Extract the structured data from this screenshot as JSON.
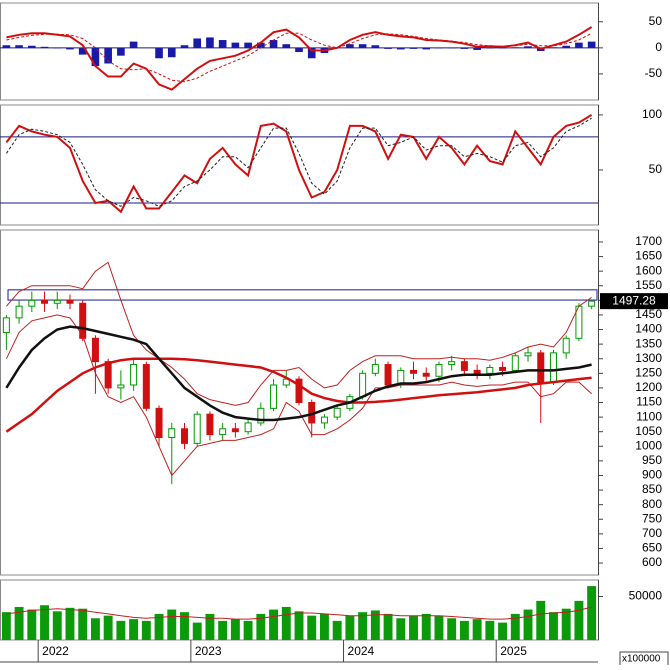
{
  "chart_data": [
    {
      "type": "line",
      "ylim": [
        -100,
        86
      ],
      "yticks": [
        -50,
        0,
        50
      ],
      "reference_lines": [
        0
      ],
      "series": [
        {
          "kind": "bar",
          "color": "#1a1aa8",
          "values": [
            5,
            5,
            4,
            2,
            -1,
            -3,
            -13,
            -35,
            -30,
            -15,
            12,
            0,
            -20,
            -18,
            5,
            18,
            20,
            15,
            10,
            10,
            10,
            15,
            7,
            -8,
            -20,
            -10,
            0,
            7,
            7,
            5,
            -2,
            -3,
            -2,
            -3,
            -1,
            -1,
            -2,
            -4,
            -1,
            -1,
            1,
            3,
            -6,
            1,
            4,
            10,
            12
          ]
        },
        {
          "kind": "line",
          "color": "#d01010",
          "values": [
            20,
            25,
            28,
            28,
            25,
            22,
            5,
            -35,
            -55,
            -55,
            -30,
            -40,
            -70,
            -80,
            -60,
            -40,
            -25,
            -20,
            -15,
            -5,
            10,
            30,
            35,
            20,
            -5,
            -5,
            0,
            15,
            25,
            30,
            25,
            22,
            20,
            15,
            14,
            12,
            8,
            2,
            3,
            2,
            5,
            10,
            -2,
            5,
            12,
            25,
            40
          ]
        },
        {
          "kind": "dashed",
          "color": "#d01010",
          "values": [
            15,
            20,
            24,
            26,
            26,
            25,
            18,
            0,
            -25,
            -40,
            -42,
            -40,
            -50,
            -62,
            -65,
            -58,
            -45,
            -35,
            -25,
            -15,
            0,
            15,
            28,
            28,
            15,
            5,
            0,
            8,
            18,
            25,
            27,
            25,
            22,
            18,
            15,
            13,
            10,
            6,
            4,
            3,
            4,
            7,
            4,
            4,
            8,
            15,
            28
          ]
        }
      ]
    },
    {
      "type": "line",
      "ylim": [
        0,
        109
      ],
      "yticks": [
        50,
        100
      ],
      "reference_lines": [
        80,
        20
      ],
      "series": [
        {
          "kind": "line",
          "color": "#d01010",
          "values": [
            75,
            90,
            85,
            82,
            80,
            70,
            40,
            20,
            22,
            12,
            35,
            15,
            15,
            30,
            45,
            38,
            60,
            70,
            55,
            45,
            90,
            92,
            85,
            50,
            25,
            30,
            50,
            90,
            90,
            85,
            60,
            82,
            80,
            60,
            80,
            70,
            55,
            72,
            58,
            55,
            85,
            70,
            55,
            80,
            90,
            93,
            100
          ]
        },
        {
          "kind": "dashed",
          "color": "#202020",
          "values": [
            65,
            82,
            87,
            85,
            82,
            75,
            55,
            32,
            22,
            17,
            25,
            22,
            17,
            22,
            35,
            40,
            50,
            62,
            62,
            52,
            70,
            88,
            88,
            65,
            38,
            28,
            40,
            70,
            88,
            88,
            72,
            75,
            80,
            68,
            72,
            72,
            62,
            65,
            62,
            57,
            72,
            75,
            62,
            70,
            85,
            90,
            97
          ]
        }
      ]
    },
    {
      "type": "candlestick",
      "ylim": [
        559,
        1741
      ],
      "yticks": [
        600,
        650,
        700,
        750,
        800,
        850,
        900,
        950,
        1000,
        1050,
        1100,
        1150,
        1200,
        1250,
        1300,
        1350,
        1400,
        1450,
        1500,
        1550,
        1600,
        1650,
        1700
      ],
      "up_color": "#009a00",
      "down_color": "#d01010",
      "zone": [
        1501,
        1536
      ],
      "last_value": 1497.28,
      "open": [
        1390,
        1440,
        1480,
        1500,
        1490,
        1500,
        1490,
        1370,
        1290,
        1200,
        1210,
        1280,
        1130,
        1030,
        1060,
        1010,
        1110,
        1040,
        1060,
        1050,
        1080,
        1130,
        1210,
        1230,
        1150,
        1080,
        1100,
        1130,
        1170,
        1250,
        1280,
        1210,
        1260,
        1250,
        1240,
        1280,
        1290,
        1260,
        1250,
        1270,
        1260,
        1310,
        1320,
        1220,
        1320,
        1370,
        1480
      ],
      "high": [
        1450,
        1500,
        1530,
        1530,
        1530,
        1520,
        1500,
        1380,
        1300,
        1260,
        1300,
        1290,
        1140,
        1080,
        1080,
        1120,
        1120,
        1080,
        1080,
        1090,
        1150,
        1230,
        1260,
        1240,
        1160,
        1110,
        1140,
        1180,
        1260,
        1300,
        1290,
        1270,
        1290,
        1270,
        1290,
        1310,
        1300,
        1280,
        1280,
        1290,
        1320,
        1340,
        1330,
        1330,
        1380,
        1490,
        1500
      ],
      "low": [
        1330,
        1420,
        1460,
        1460,
        1470,
        1470,
        1360,
        1180,
        1180,
        1160,
        1190,
        1120,
        1000,
        870,
        990,
        1000,
        1020,
        1020,
        1030,
        1040,
        1070,
        1120,
        1200,
        1140,
        1030,
        1060,
        1090,
        1120,
        1160,
        1240,
        1200,
        1200,
        1230,
        1220,
        1220,
        1260,
        1240,
        1230,
        1230,
        1240,
        1250,
        1290,
        1080,
        1210,
        1300,
        1360,
        1470
      ],
      "close": [
        1440,
        1480,
        1500,
        1490,
        1500,
        1490,
        1370,
        1290,
        1200,
        1210,
        1280,
        1130,
        1030,
        1060,
        1010,
        1110,
        1040,
        1060,
        1050,
        1080,
        1130,
        1210,
        1230,
        1150,
        1080,
        1100,
        1130,
        1170,
        1250,
        1280,
        1210,
        1260,
        1250,
        1240,
        1280,
        1290,
        1260,
        1250,
        1270,
        1260,
        1310,
        1320,
        1220,
        1320,
        1370,
        1480,
        1497.28
      ],
      "series": [
        {
          "kind": "thin",
          "color": "#c02020",
          "values": [
            1480,
            1530,
            1550,
            1550,
            1550,
            1550,
            1540,
            1600,
            1630,
            1500,
            1380,
            1330,
            1300,
            1270,
            1230,
            1180,
            1160,
            1150,
            1140,
            1150,
            1210,
            1260,
            1260,
            1270,
            1230,
            1200,
            1210,
            1260,
            1290,
            1310,
            1310,
            1310,
            1300,
            1300,
            1300,
            1305,
            1300,
            1300,
            1295,
            1305,
            1320,
            1340,
            1350,
            1340,
            1390,
            1480,
            1510
          ]
        },
        {
          "kind": "thin",
          "color": "#c02020",
          "values": [
            1300,
            1390,
            1430,
            1440,
            1450,
            1440,
            1380,
            1250,
            1170,
            1150,
            1170,
            1100,
            1000,
            900,
            950,
            1000,
            1010,
            1020,
            1020,
            1030,
            1040,
            1060,
            1150,
            1120,
            1040,
            1040,
            1060,
            1090,
            1130,
            1200,
            1200,
            1210,
            1210,
            1210,
            1210,
            1220,
            1210,
            1205,
            1210,
            1210,
            1220,
            1220,
            1170,
            1180,
            1220,
            1220,
            1180
          ]
        },
        {
          "kind": "thick",
          "color": "#d01010",
          "values": [
            1050,
            1080,
            1110,
            1150,
            1190,
            1220,
            1250,
            1270,
            1285,
            1295,
            1300,
            1300,
            1300,
            1300,
            1298,
            1295,
            1290,
            1285,
            1280,
            1275,
            1270,
            1255,
            1235,
            1210,
            1180,
            1165,
            1155,
            1150,
            1150,
            1152,
            1155,
            1160,
            1165,
            1170,
            1175,
            1178,
            1182,
            1185,
            1190,
            1195,
            1200,
            1210,
            1215,
            1220,
            1225,
            1230,
            1235
          ]
        },
        {
          "kind": "thick",
          "color": "#111111",
          "values": [
            1200,
            1270,
            1330,
            1370,
            1400,
            1410,
            1405,
            1395,
            1385,
            1375,
            1365,
            1350,
            1300,
            1250,
            1200,
            1170,
            1140,
            1115,
            1100,
            1095,
            1090,
            1090,
            1095,
            1100,
            1110,
            1125,
            1140,
            1150,
            1170,
            1190,
            1205,
            1215,
            1215,
            1220,
            1230,
            1240,
            1245,
            1245,
            1245,
            1250,
            1255,
            1260,
            1260,
            1260,
            1265,
            1270,
            1280
          ]
        }
      ]
    },
    {
      "type": "bar",
      "ylim": [
        0,
        69000
      ],
      "yticks": [
        50000
      ],
      "unit_label": "x100000",
      "color": "#0a9a0a",
      "categories": [
        null,
        null,
        null,
        "2022",
        null,
        null,
        null,
        null,
        null,
        null,
        null,
        null,
        null,
        null,
        null,
        "2023",
        null,
        null,
        null,
        null,
        null,
        null,
        null,
        null,
        null,
        null,
        null,
        "2024",
        null,
        null,
        null,
        null,
        null,
        null,
        null,
        null,
        null,
        null,
        null,
        "2025",
        null,
        null,
        null,
        null,
        null,
        null,
        null
      ],
      "values": [
        32000,
        38000,
        35000,
        40000,
        33000,
        37000,
        36000,
        25000,
        28000,
        22000,
        24000,
        22000,
        30000,
        35000,
        32000,
        20000,
        30000,
        22000,
        24000,
        22000,
        30000,
        35000,
        38000,
        33000,
        28000,
        30000,
        22000,
        28000,
        32000,
        34000,
        30000,
        25000,
        28000,
        30000,
        28000,
        25000,
        22000,
        24000,
        22000,
        20000,
        30000,
        35000,
        45000,
        32000,
        36000,
        45000,
        62000
      ],
      "series": [
        {
          "kind": "thin",
          "color": "#c02020",
          "values": [
            30000,
            32000,
            34000,
            35000,
            36000,
            35000,
            34000,
            32000,
            30000,
            28000,
            26000,
            25000,
            26000,
            27000,
            27000,
            26000,
            25000,
            25000,
            24000,
            24000,
            25000,
            27000,
            29000,
            31000,
            31000,
            30000,
            29000,
            28000,
            28000,
            29000,
            29000,
            28000,
            28000,
            28000,
            28000,
            27000,
            26000,
            25000,
            24000,
            24000,
            25000,
            27000,
            30000,
            31000,
            32000,
            34000,
            38000
          ]
        }
      ]
    }
  ]
}
